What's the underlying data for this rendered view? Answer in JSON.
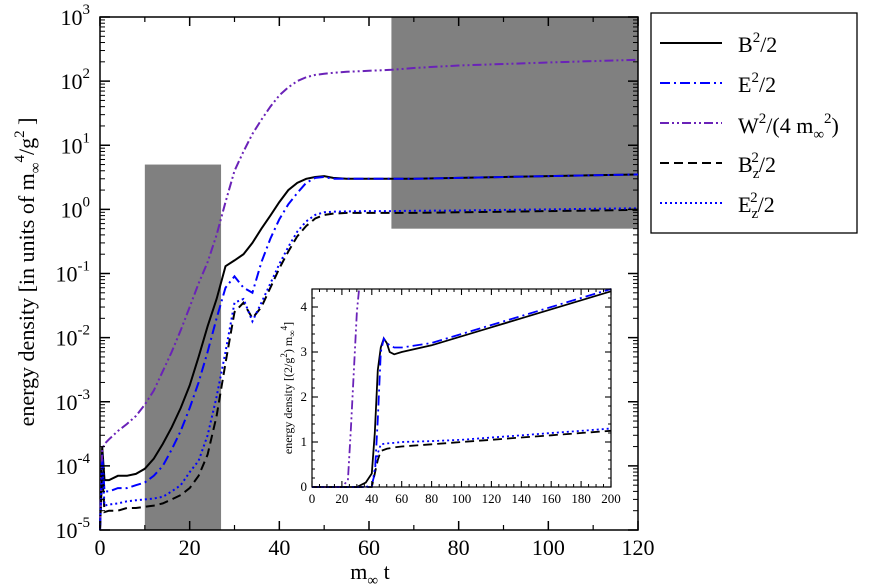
{
  "chart_data": [
    {
      "type": "line",
      "xlabel": {
        "base": "m",
        "sub": "∞",
        "rest": " t"
      },
      "ylabel": {
        "a": "energy density [in units of m",
        "sub": "∞",
        "sup": "4",
        "b": "/g",
        "sup2": "2",
        "c": " ]"
      },
      "xlim": [
        0,
        120
      ],
      "ylim": [
        1e-05,
        1000
      ],
      "yscale": "log",
      "x_ticks": [
        "0",
        "20",
        "40",
        "60",
        "80",
        "100",
        "120"
      ],
      "y_tick_exponents": [
        "-5",
        "-4",
        "-3",
        "-2",
        "-1",
        "0",
        "1",
        "2",
        "3"
      ],
      "y_tick_base": "10",
      "shaded_regions": [
        {
          "x": [
            10,
            27
          ],
          "y": [
            1e-05,
            5
          ]
        },
        {
          "x": [
            65,
            120
          ],
          "y": [
            0.5,
            1000
          ]
        }
      ],
      "legend_position": "outside-right",
      "legend": [
        {
          "key": "B2",
          "label": {
            "m": "B",
            "sup": "2",
            "t": "/2"
          }
        },
        {
          "key": "E2",
          "label": {
            "m": "E",
            "sup": "2",
            "t": "/2"
          }
        },
        {
          "key": "W2",
          "label": {
            "m": "W",
            "sup": "2",
            "t": "/(4 m",
            "sub": "∞",
            "sup2": "2",
            "end": ")"
          }
        },
        {
          "key": "Bz",
          "label": {
            "m": "B",
            "sub": "z",
            "sup": "2",
            "t": "/2"
          }
        },
        {
          "key": "Ez",
          "label": {
            "m": "E",
            "sub": "z",
            "sup": "2",
            "t": "/2"
          }
        }
      ],
      "series": [
        {
          "key": "B2",
          "color": "#000000",
          "dash": "solid",
          "x": [
            0,
            0.5,
            1,
            2,
            4,
            6,
            8,
            10,
            12,
            14,
            16,
            18,
            20,
            22,
            24,
            26,
            28,
            30,
            32,
            34,
            36,
            38,
            40,
            42,
            44,
            46,
            48,
            50,
            52,
            55,
            60,
            65,
            70,
            80,
            90,
            100,
            110,
            120
          ],
          "y": [
            1e-05,
            0.0002,
            6e-05,
            6e-05,
            7e-05,
            7e-05,
            7.5e-05,
            9e-05,
            0.00013,
            0.00022,
            0.0004,
            0.0008,
            0.0018,
            0.005,
            0.015,
            0.04,
            0.13,
            0.16,
            0.2,
            0.3,
            0.5,
            0.8,
            1.3,
            2.0,
            2.6,
            3.0,
            3.2,
            3.3,
            3.1,
            3.0,
            3.0,
            3.0,
            3.0,
            3.1,
            3.2,
            3.3,
            3.4,
            3.5
          ]
        },
        {
          "key": "E2",
          "color": "#0000ff",
          "dash": "dashdot",
          "x": [
            0,
            0.5,
            1,
            2,
            4,
            6,
            8,
            10,
            12,
            14,
            16,
            18,
            20,
            22,
            24,
            26,
            28,
            30,
            32,
            34,
            36,
            38,
            40,
            42,
            44,
            46,
            48,
            50,
            52,
            55,
            60,
            65,
            70,
            80,
            90,
            100,
            110,
            120
          ],
          "y": [
            1e-05,
            0.00015,
            4e-05,
            4e-05,
            4.5e-05,
            4.5e-05,
            5e-05,
            5.5e-05,
            7e-05,
            0.0001,
            0.00018,
            0.00035,
            0.0008,
            0.002,
            0.006,
            0.02,
            0.06,
            0.09,
            0.06,
            0.05,
            0.15,
            0.35,
            0.7,
            1.2,
            1.8,
            2.6,
            3.1,
            3.2,
            3.0,
            3.0,
            3.0,
            3.0,
            3.0,
            3.1,
            3.2,
            3.3,
            3.4,
            3.5
          ]
        },
        {
          "key": "W2",
          "color": "#6a22b8",
          "dash": "dashdotdot",
          "x": [
            0,
            0.5,
            1,
            2,
            4,
            6,
            8,
            10,
            12,
            14,
            16,
            18,
            20,
            22,
            24,
            26,
            28,
            30,
            32,
            34,
            36,
            38,
            40,
            42,
            44,
            46,
            48,
            50,
            52,
            55,
            60,
            65,
            70,
            80,
            90,
            100,
            110,
            120
          ],
          "y": [
            1e-05,
            0.00018,
            0.00022,
            0.00026,
            0.00035,
            0.00045,
            0.0006,
            0.0009,
            0.0015,
            0.003,
            0.006,
            0.013,
            0.03,
            0.07,
            0.15,
            0.4,
            1.3,
            4.0,
            8.0,
            15,
            25,
            40,
            60,
            80,
            100,
            115,
            125,
            130,
            135,
            140,
            145,
            150,
            160,
            175,
            185,
            195,
            205,
            215
          ]
        },
        {
          "key": "Bz",
          "color": "#000000",
          "dash": "dashed",
          "x": [
            0,
            0.5,
            1,
            2,
            4,
            6,
            8,
            10,
            12,
            14,
            16,
            18,
            20,
            22,
            24,
            26,
            28,
            30,
            32,
            34,
            36,
            38,
            40,
            42,
            44,
            46,
            48,
            50,
            52,
            55,
            60,
            65,
            70,
            80,
            90,
            100,
            110,
            120
          ],
          "y": [
            1e-05,
            8e-05,
            1.9e-05,
            2e-05,
            2e-05,
            2.2e-05,
            2.2e-05,
            2.3e-05,
            2.4e-05,
            2.6e-05,
            3e-05,
            3.5e-05,
            4.5e-05,
            7e-05,
            0.00015,
            0.0006,
            0.004,
            0.025,
            0.035,
            0.02,
            0.03,
            0.06,
            0.12,
            0.22,
            0.38,
            0.55,
            0.72,
            0.82,
            0.86,
            0.88,
            0.88,
            0.88,
            0.88,
            0.9,
            0.92,
            0.94,
            0.96,
            0.98
          ]
        },
        {
          "key": "Ez",
          "color": "#0000ff",
          "dash": "dotted",
          "x": [
            0,
            0.5,
            1,
            2,
            4,
            6,
            8,
            10,
            12,
            14,
            16,
            18,
            20,
            22,
            24,
            26,
            28,
            30,
            32,
            34,
            36,
            38,
            40,
            42,
            44,
            46,
            48,
            50,
            52,
            55,
            60,
            65,
            70,
            80,
            90,
            100,
            110,
            120
          ],
          "y": [
            1e-05,
            0.00012,
            2.4e-05,
            2.5e-05,
            2.6e-05,
            2.8e-05,
            2.9e-05,
            3e-05,
            3.1e-05,
            3.3e-05,
            4e-05,
            5e-05,
            8e-05,
            0.00012,
            0.0003,
            0.0012,
            0.006,
            0.035,
            0.04,
            0.018,
            0.035,
            0.07,
            0.14,
            0.26,
            0.45,
            0.65,
            0.82,
            0.9,
            0.92,
            0.93,
            0.94,
            0.94,
            0.95,
            0.96,
            0.98,
            1.0,
            1.02,
            1.04
          ]
        }
      ]
    },
    {
      "type": "line",
      "inset": true,
      "ylabel": {
        "a": "energy density [(2/g",
        "sup": "2",
        "b": ") m",
        "sub": "∞",
        "sup2": "4",
        "c": "]"
      },
      "xlim": [
        0,
        200
      ],
      "ylim": [
        0,
        4.4
      ],
      "x_ticks": [
        "0",
        "20",
        "40",
        "60",
        "80",
        "100",
        "120",
        "140",
        "160",
        "180",
        "200"
      ],
      "y_ticks": [
        "0",
        "1",
        "2",
        "3",
        "4"
      ],
      "series": [
        {
          "key": "B2",
          "color": "#000000",
          "dash": "solid",
          "x": [
            0,
            30,
            36,
            40,
            42,
            44,
            46,
            48,
            50,
            52,
            55,
            60,
            80,
            100,
            120,
            140,
            160,
            180,
            200
          ],
          "y": [
            0,
            0,
            0.1,
            0.3,
            1.2,
            2.6,
            3.1,
            3.3,
            3.2,
            3.0,
            2.95,
            3.0,
            3.15,
            3.35,
            3.55,
            3.75,
            3.95,
            4.15,
            4.35
          ]
        },
        {
          "key": "E2",
          "color": "#0000ff",
          "dash": "dashdot",
          "x": [
            0,
            36,
            40,
            42,
            44,
            46,
            48,
            50,
            52,
            55,
            60,
            80,
            100,
            120,
            140,
            160,
            180,
            200
          ],
          "y": [
            0,
            0,
            0.05,
            0.3,
            1.5,
            3.0,
            3.3,
            3.2,
            3.15,
            3.1,
            3.1,
            3.2,
            3.4,
            3.6,
            3.8,
            4.0,
            4.2,
            4.4
          ]
        },
        {
          "key": "W2",
          "color": "#6a22b8",
          "dash": "dashdotdot",
          "x": [
            0,
            20,
            24,
            26,
            28,
            30,
            31.5
          ],
          "y": [
            0,
            0,
            0.15,
            1.3,
            2.6,
            3.9,
            4.4
          ]
        },
        {
          "key": "Bz",
          "color": "#000000",
          "dash": "dashed",
          "x": [
            0,
            40,
            42,
            44,
            46,
            50,
            55,
            60,
            80,
            100,
            120,
            140,
            160,
            180,
            200
          ],
          "y": [
            0,
            0,
            0.3,
            0.6,
            0.8,
            0.85,
            0.88,
            0.9,
            0.95,
            1.0,
            1.05,
            1.1,
            1.15,
            1.2,
            1.25
          ]
        },
        {
          "key": "Ez",
          "color": "#0000ff",
          "dash": "dotted",
          "x": [
            0,
            40,
            42,
            44,
            46,
            50,
            55,
            60,
            80,
            100,
            120,
            140,
            160,
            180,
            200
          ],
          "y": [
            0,
            0,
            0.4,
            0.75,
            0.95,
            0.97,
            0.98,
            1.0,
            1.02,
            1.05,
            1.1,
            1.15,
            1.2,
            1.25,
            1.3
          ]
        }
      ]
    }
  ]
}
